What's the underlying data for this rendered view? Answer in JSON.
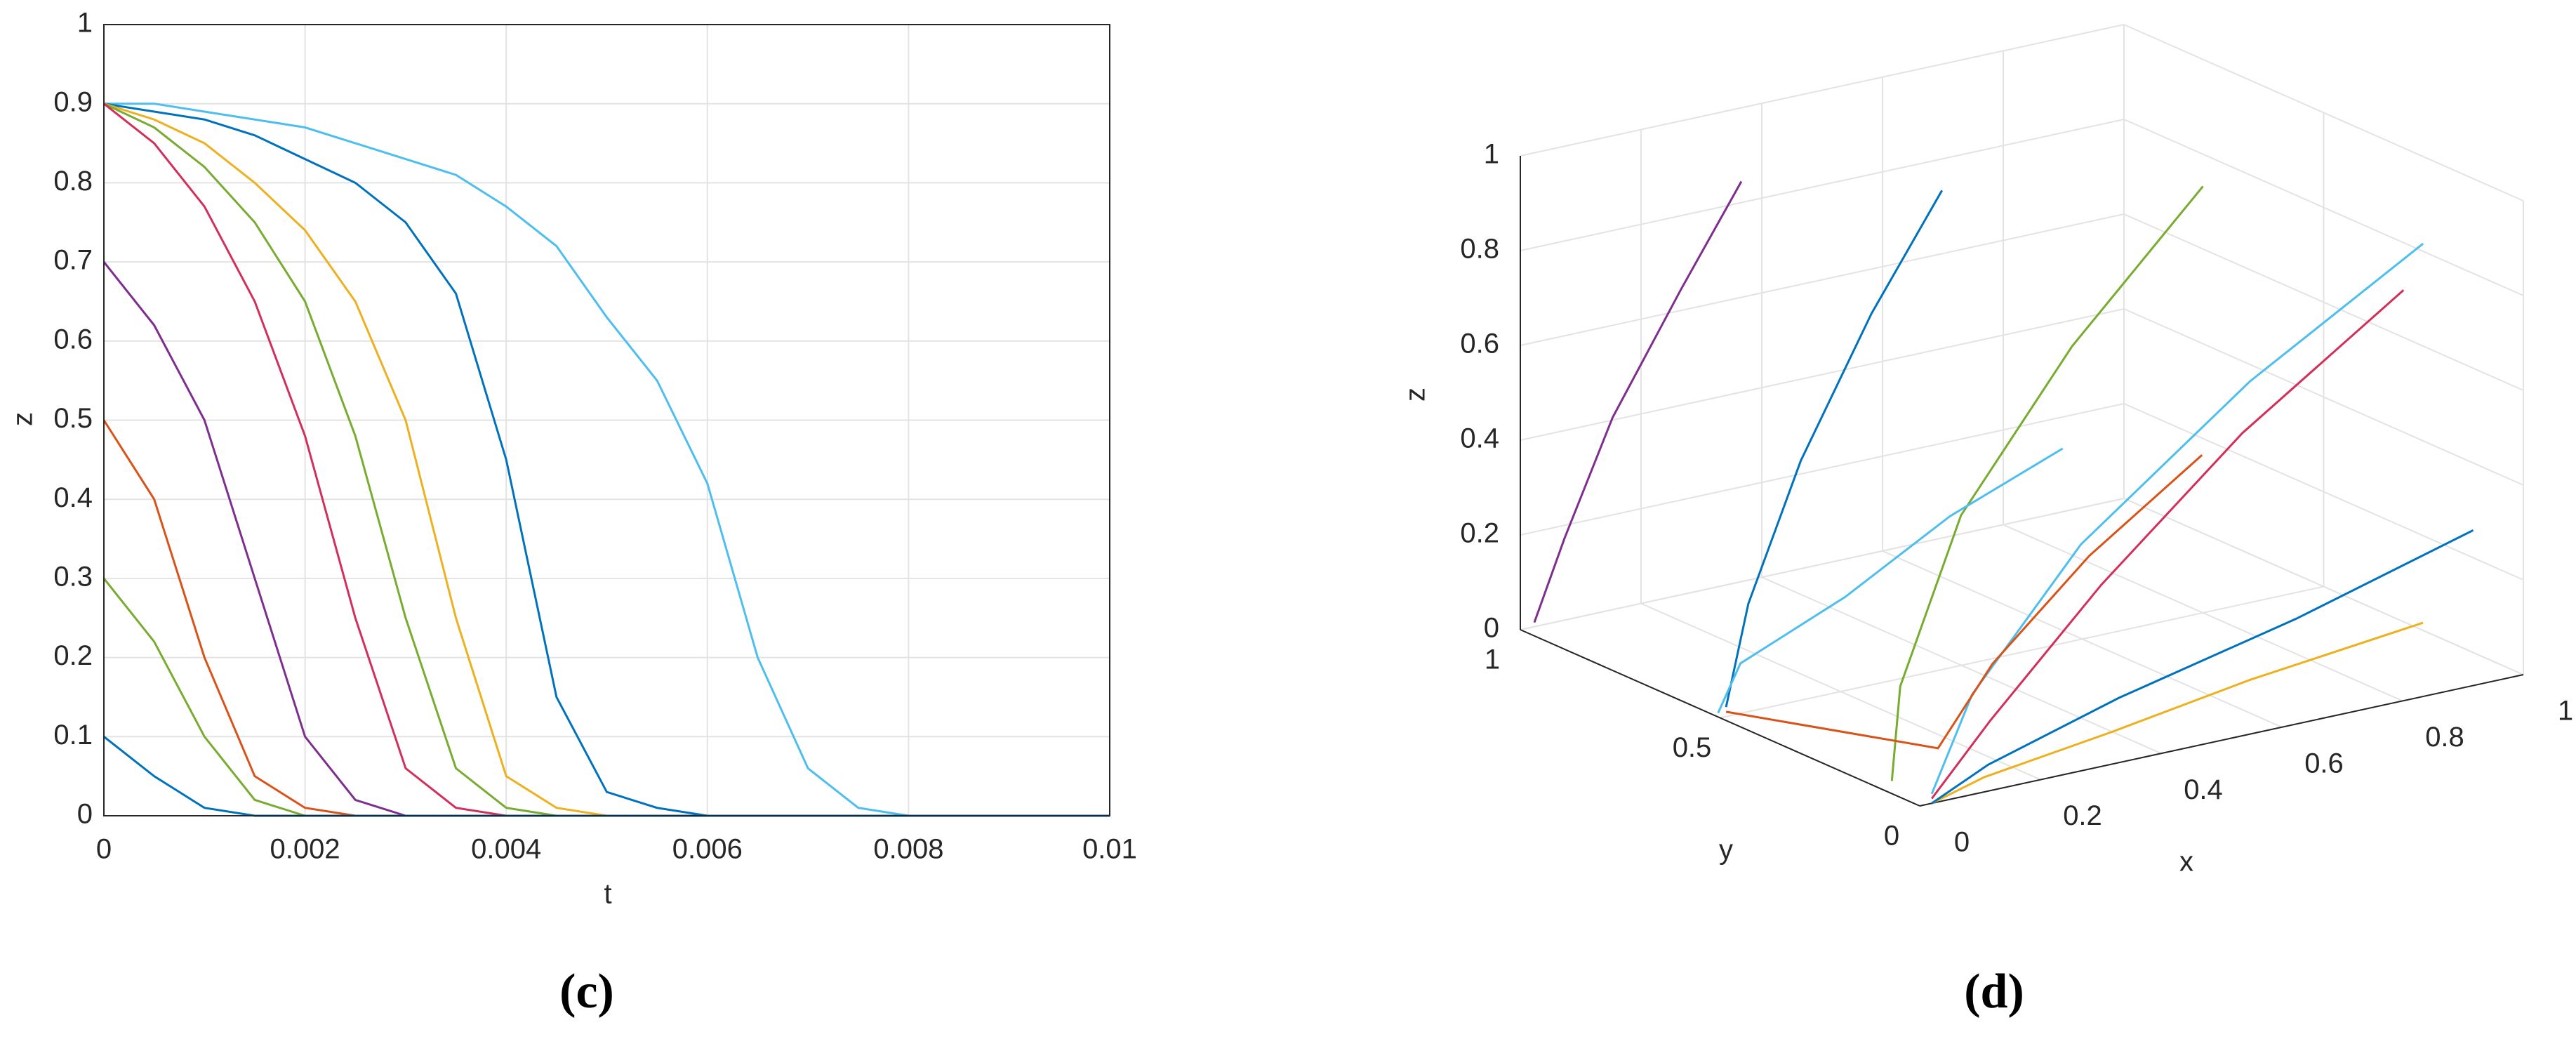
{
  "chart_data": [
    {
      "type": "line",
      "caption": "(c)",
      "xlabel": "t",
      "ylabel": "z",
      "x": [
        0,
        0.0005,
        0.001,
        0.0015,
        0.002,
        0.0025,
        0.003,
        0.0035,
        0.004,
        0.0045,
        0.005,
        0.0055,
        0.006,
        0.0065,
        0.007,
        0.0075,
        0.008,
        0.0085,
        0.009,
        0.0095,
        0.01
      ],
      "xlim": [
        0,
        0.01
      ],
      "xticks": [
        0,
        0.002,
        0.004,
        0.006,
        0.008,
        0.01
      ],
      "ylim": [
        0,
        1
      ],
      "yticks": [
        0,
        0.1,
        0.2,
        0.3,
        0.4,
        0.5,
        0.6,
        0.7,
        0.8,
        0.9,
        1
      ],
      "grid": true,
      "series": [
        {
          "color": "#4dbeee",
          "values": [
            0.9,
            0.9,
            0.89,
            0.88,
            0.87,
            0.85,
            0.83,
            0.81,
            0.77,
            0.72,
            0.63,
            0.55,
            0.42,
            0.2,
            0.06,
            0.01,
            0,
            0,
            0,
            0,
            0
          ]
        },
        {
          "color": "#0072bd",
          "values": [
            0.9,
            0.89,
            0.88,
            0.86,
            0.83,
            0.8,
            0.75,
            0.66,
            0.45,
            0.15,
            0.03,
            0.01,
            0,
            0,
            0,
            0,
            0,
            0,
            0,
            0,
            0
          ]
        },
        {
          "color": "#edb120",
          "values": [
            0.9,
            0.88,
            0.85,
            0.8,
            0.74,
            0.65,
            0.5,
            0.25,
            0.05,
            0.01,
            0,
            0,
            0,
            0,
            0,
            0,
            0,
            0,
            0,
            0,
            0
          ]
        },
        {
          "color": "#77ac30",
          "values": [
            0.9,
            0.87,
            0.82,
            0.75,
            0.65,
            0.48,
            0.25,
            0.06,
            0.01,
            0,
            0,
            0,
            0,
            0,
            0,
            0,
            0,
            0,
            0,
            0,
            0
          ]
        },
        {
          "color": "#d22f5a",
          "values": [
            0.9,
            0.85,
            0.77,
            0.65,
            0.48,
            0.25,
            0.06,
            0.01,
            0,
            0,
            0,
            0,
            0,
            0,
            0,
            0,
            0,
            0,
            0,
            0,
            0
          ]
        },
        {
          "color": "#7e2f8e",
          "values": [
            0.7,
            0.62,
            0.5,
            0.3,
            0.1,
            0.02,
            0,
            0,
            0,
            0,
            0,
            0,
            0,
            0,
            0,
            0,
            0,
            0,
            0,
            0,
            0
          ]
        },
        {
          "color": "#d95319",
          "values": [
            0.5,
            0.4,
            0.2,
            0.05,
            0.01,
            0,
            0,
            0,
            0,
            0,
            0,
            0,
            0,
            0,
            0,
            0,
            0,
            0,
            0,
            0,
            0
          ]
        },
        {
          "color": "#77ac30",
          "values": [
            0.3,
            0.22,
            0.1,
            0.02,
            0,
            0,
            0,
            0,
            0,
            0,
            0,
            0,
            0,
            0,
            0,
            0,
            0,
            0,
            0,
            0,
            0
          ]
        },
        {
          "color": "#0072bd",
          "values": [
            0.1,
            0.05,
            0.01,
            0,
            0,
            0,
            0,
            0,
            0,
            0,
            0,
            0,
            0,
            0,
            0,
            0,
            0,
            0,
            0,
            0,
            0
          ]
        }
      ]
    },
    {
      "type": "line3d",
      "caption": "(d)",
      "xlabel": "x",
      "ylabel": "y",
      "zlabel": "z",
      "xlim": [
        0,
        1
      ],
      "xticks": [
        0,
        0.2,
        0.4,
        0.6,
        0.8,
        1
      ],
      "ylim": [
        0,
        1
      ],
      "yticks": [
        0,
        0.5,
        1
      ],
      "zlim": [
        0,
        1
      ],
      "zticks": [
        0,
        0.2,
        0.4,
        0.6,
        0.8,
        1
      ],
      "grid": true,
      "series": [
        {
          "color": "#4dbeee",
          "x": [
            0.9,
            0.6,
            0.3,
            0.1,
            0.02
          ],
          "y": [
            0.1,
            0.08,
            0.05,
            0.02,
            0
          ],
          "z": [
            0.9,
            0.7,
            0.45,
            0.2,
            0.02
          ]
        },
        {
          "color": "#d22f5a",
          "x": [
            1,
            0.7,
            0.4,
            0.15,
            0.02
          ],
          "y": [
            0.3,
            0.25,
            0.15,
            0.05,
            0
          ],
          "z": [
            0.7,
            0.5,
            0.3,
            0.12,
            0.01
          ]
        },
        {
          "color": "#77ac30",
          "x": [
            0.8,
            0.55,
            0.3,
            0.1,
            0.02
          ],
          "y": [
            0.5,
            0.45,
            0.35,
            0.2,
            0.1
          ],
          "z": [
            0.9,
            0.65,
            0.4,
            0.15,
            0.01
          ]
        },
        {
          "color": "#edb120",
          "x": [
            0.9,
            0.6,
            0.35,
            0.12,
            0.02
          ],
          "y": [
            0.1,
            0.08,
            0.05,
            0.02,
            0
          ],
          "z": [
            0.1,
            0.07,
            0.04,
            0.02,
            0
          ]
        },
        {
          "color": "#0072bd",
          "x": [
            0.5,
            0.35,
            0.2,
            0.08,
            0.01
          ],
          "y": [
            0.7,
            0.65,
            0.6,
            0.55,
            0.5
          ],
          "z": [
            0.9,
            0.7,
            0.45,
            0.2,
            0.02
          ]
        },
        {
          "color": "#7e2f8e",
          "x": [
            0.3,
            0.2,
            0.1,
            0.04,
            0.01
          ],
          "y": [
            0.9,
            0.9,
            0.92,
            0.95,
            0.98
          ],
          "z": [
            0.9,
            0.7,
            0.45,
            0.2,
            0.02
          ]
        },
        {
          "color": "#d95319",
          "x": [
            0.6,
            0.4,
            0.2,
            0.07,
            0.01
          ],
          "y": [
            0.2,
            0.18,
            0.12,
            0.06,
            0.5
          ],
          "z": [
            0.5,
            0.35,
            0.2,
            0.08,
            0.01
          ]
        },
        {
          "color": "#4dbeee",
          "x": [
            0.7,
            0.5,
            0.3,
            0.1,
            0.01
          ],
          "y": [
            0.7,
            0.68,
            0.64,
            0.6,
            0.52
          ],
          "z": [
            0.3,
            0.22,
            0.12,
            0.05,
            0
          ]
        },
        {
          "color": "#0072bd",
          "x": [
            0.95,
            0.65,
            0.35,
            0.12,
            0.02
          ],
          "y": [
            0.05,
            0.04,
            0.03,
            0.01,
            0
          ],
          "z": [
            0.3,
            0.2,
            0.12,
            0.05,
            0
          ]
        }
      ]
    }
  ]
}
